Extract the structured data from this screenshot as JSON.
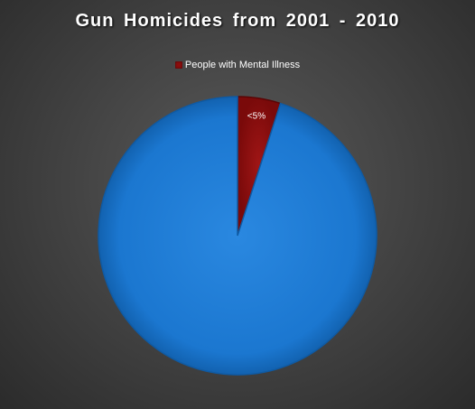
{
  "chart_data": {
    "type": "pie",
    "title": "Gun Homicides  from  2001 - 2010",
    "slices": [
      {
        "name": "People with Mental Illness",
        "value": 5,
        "label": "<5%",
        "color": "#8b0d0d",
        "in_legend": true
      },
      {
        "value": 95,
        "label": "",
        "color": "#1a78d2",
        "in_legend": false
      }
    ],
    "start_angle_deg": 0,
    "legend_position": "top"
  }
}
